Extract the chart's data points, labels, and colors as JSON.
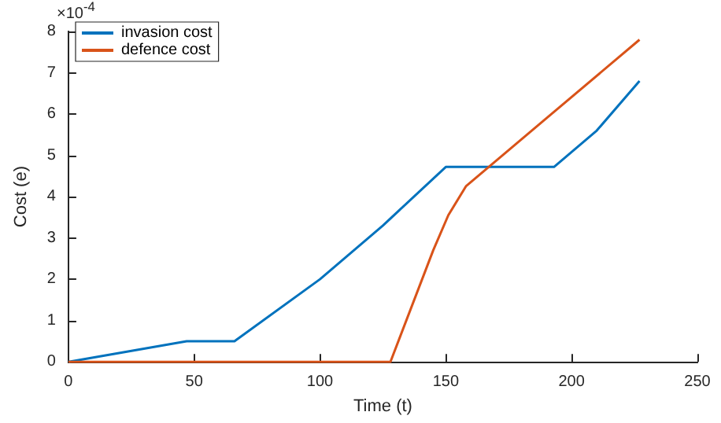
{
  "chart_data": {
    "type": "line",
    "xlabel": "Time (t)",
    "ylabel": "Cost (e)",
    "annotations": [
      "×10$^{-4}$"
    ],
    "series": [
      {
        "name": "invasion cost",
        "color": "#0072bd",
        "x": [
          0,
          47,
          66,
          100,
          125,
          150,
          193,
          210,
          227
        ],
        "values": [
          0,
          0.5,
          0.5,
          2.0,
          3.3,
          4.72,
          4.72,
          5.6,
          6.8
        ]
      },
      {
        "name": "defence cost",
        "color": "#d95319",
        "x": [
          0,
          128,
          145,
          151,
          158,
          190,
          227
        ],
        "values": [
          0,
          0,
          2.7,
          3.55,
          4.25,
          5.9,
          7.8
        ]
      }
    ],
    "xlim": [
      0,
      250
    ],
    "xticks": [
      0,
      50,
      100,
      150,
      200,
      250
    ],
    "ylim": [
      0,
      8
    ],
    "yticks": [
      0,
      1,
      2,
      3,
      4,
      5,
      6,
      7,
      8
    ],
    "grid": false,
    "legend": "top left",
    "marker": "none",
    "line_style": "solid"
  }
}
